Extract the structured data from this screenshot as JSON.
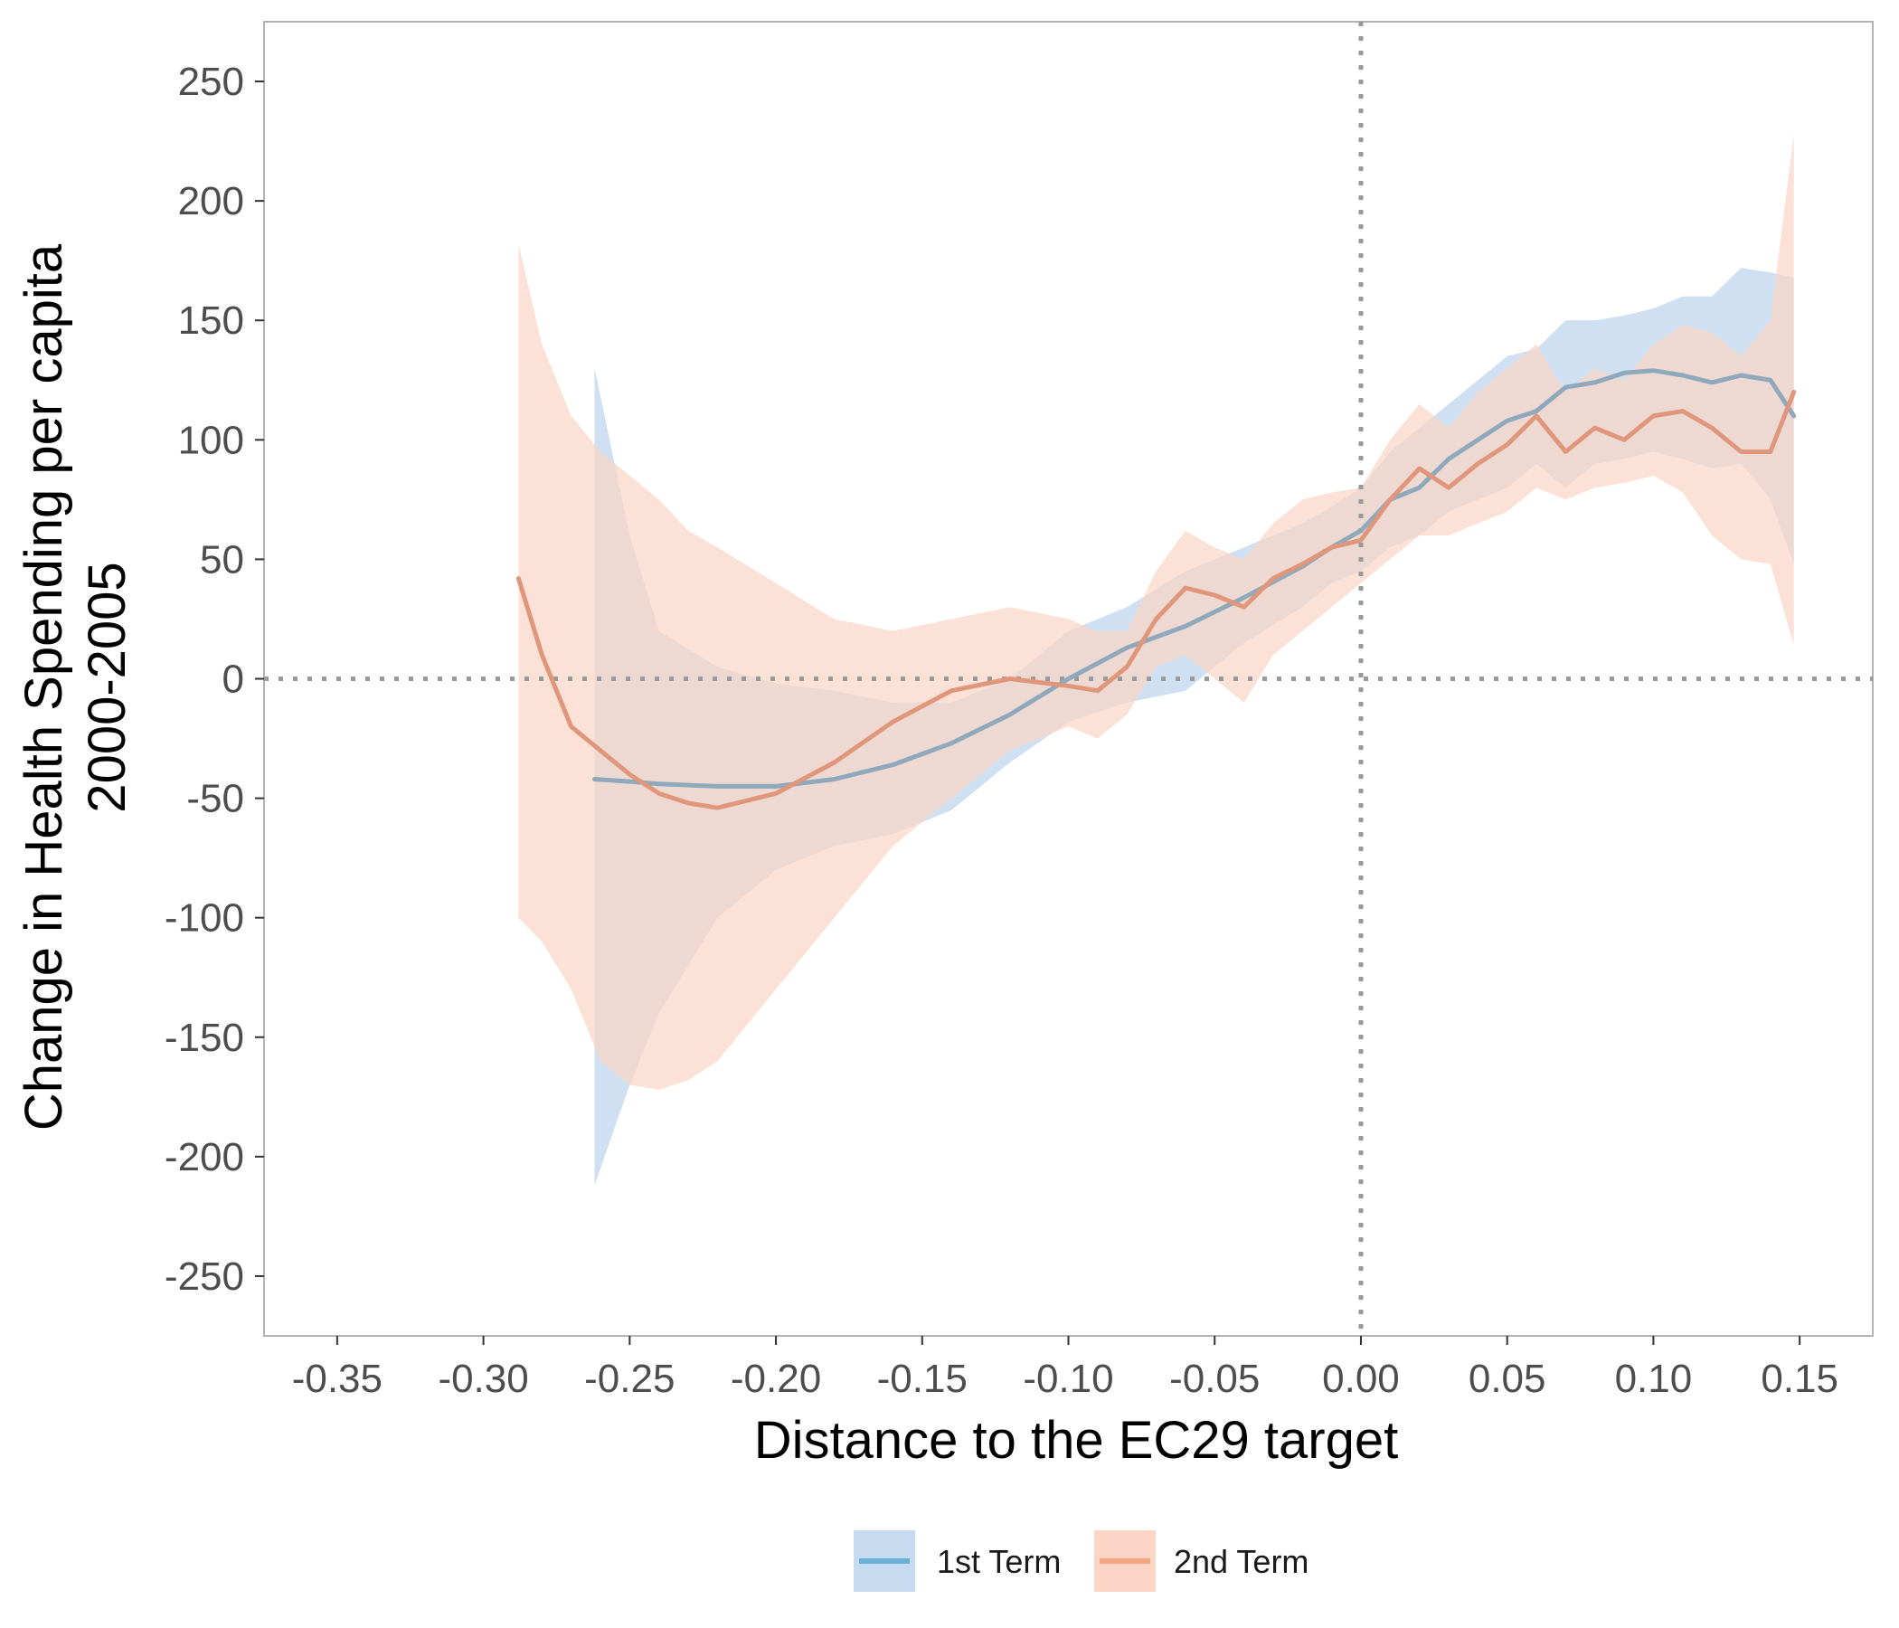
{
  "chart_data": {
    "type": "line",
    "title": "",
    "xlabel": "Distance to the EC29 target",
    "ylabel": [
      "Change in Health Spending per capita",
      "2000-2005"
    ],
    "xlim": [
      -0.375,
      0.175
    ],
    "ylim": [
      -275,
      275
    ],
    "x_ticks": [
      -0.35,
      -0.3,
      -0.25,
      -0.2,
      -0.15,
      -0.1,
      -0.05,
      0.0,
      0.05,
      0.1,
      0.15
    ],
    "x_tick_labels": [
      "-0.35",
      "-0.30",
      "-0.25",
      "-0.20",
      "-0.15",
      "-0.10",
      "-0.05",
      "0.00",
      "0.05",
      "0.10",
      "0.15"
    ],
    "y_ticks": [
      -250,
      -200,
      -150,
      -100,
      -50,
      0,
      50,
      100,
      150,
      200,
      250
    ],
    "y_tick_labels": [
      "-250",
      "-200",
      "-150",
      "-100",
      "-50",
      "0",
      "50",
      "100",
      "150",
      "200",
      "250"
    ],
    "reference_lines": {
      "x": 0,
      "y": 0,
      "style": "dotted"
    },
    "grid": false,
    "legend": {
      "position": "bottom"
    },
    "series": [
      {
        "name": "1st Term",
        "color": "#6baed6",
        "band_color": "#c6dbef",
        "x": [
          -0.262,
          -0.25,
          -0.24,
          -0.22,
          -0.2,
          -0.18,
          -0.16,
          -0.14,
          -0.12,
          -0.1,
          -0.08,
          -0.06,
          -0.04,
          -0.02,
          -0.01,
          0.0,
          0.01,
          0.02,
          0.03,
          0.04,
          0.05,
          0.06,
          0.07,
          0.08,
          0.09,
          0.1,
          0.11,
          0.12,
          0.13,
          0.14,
          0.148
        ],
        "y": [
          -42,
          -43,
          -44,
          -45,
          -45,
          -42,
          -36,
          -27,
          -15,
          0,
          13,
          22,
          34,
          47,
          55,
          62,
          75,
          80,
          92,
          100,
          108,
          112,
          122,
          124,
          128,
          129,
          127,
          124,
          127,
          125,
          110
        ],
        "lower": [
          -212,
          -170,
          -140,
          -100,
          -80,
          -70,
          -65,
          -55,
          -35,
          -18,
          -10,
          -5,
          15,
          30,
          40,
          45,
          55,
          60,
          70,
          75,
          80,
          90,
          80,
          90,
          92,
          95,
          92,
          88,
          90,
          75,
          48
        ],
        "upper": [
          130,
          60,
          20,
          5,
          -2,
          -5,
          -10,
          -10,
          0,
          20,
          30,
          45,
          55,
          65,
          72,
          80,
          95,
          105,
          115,
          125,
          135,
          138,
          150,
          150,
          152,
          155,
          160,
          160,
          172,
          170,
          168
        ]
      },
      {
        "name": "2nd Term",
        "color": "#f4a582",
        "band_color": "#fbd5c5",
        "x": [
          -0.288,
          -0.28,
          -0.27,
          -0.26,
          -0.25,
          -0.24,
          -0.23,
          -0.22,
          -0.2,
          -0.18,
          -0.16,
          -0.14,
          -0.12,
          -0.1,
          -0.09,
          -0.08,
          -0.07,
          -0.06,
          -0.05,
          -0.04,
          -0.03,
          -0.02,
          -0.01,
          0.0,
          0.01,
          0.02,
          0.03,
          0.04,
          0.05,
          0.06,
          0.07,
          0.08,
          0.09,
          0.1,
          0.11,
          0.12,
          0.13,
          0.14,
          0.148
        ],
        "y": [
          42,
          10,
          -20,
          -30,
          -40,
          -48,
          -52,
          -54,
          -48,
          -35,
          -18,
          -5,
          0,
          -3,
          -5,
          5,
          25,
          38,
          35,
          30,
          42,
          48,
          55,
          58,
          75,
          88,
          80,
          90,
          98,
          110,
          95,
          105,
          100,
          110,
          112,
          105,
          95,
          95,
          120
        ],
        "lower": [
          -100,
          -110,
          -130,
          -160,
          -170,
          -172,
          -168,
          -160,
          -130,
          -100,
          -70,
          -50,
          -30,
          -20,
          -25,
          -15,
          5,
          10,
          0,
          -10,
          10,
          20,
          30,
          40,
          50,
          60,
          60,
          65,
          70,
          80,
          75,
          80,
          82,
          85,
          78,
          60,
          50,
          48,
          14
        ],
        "upper": [
          182,
          140,
          110,
          95,
          85,
          75,
          62,
          55,
          40,
          25,
          20,
          25,
          30,
          25,
          20,
          20,
          45,
          62,
          55,
          50,
          65,
          75,
          78,
          80,
          100,
          115,
          105,
          120,
          130,
          140,
          120,
          130,
          125,
          140,
          148,
          145,
          135,
          150,
          228
        ]
      }
    ]
  }
}
